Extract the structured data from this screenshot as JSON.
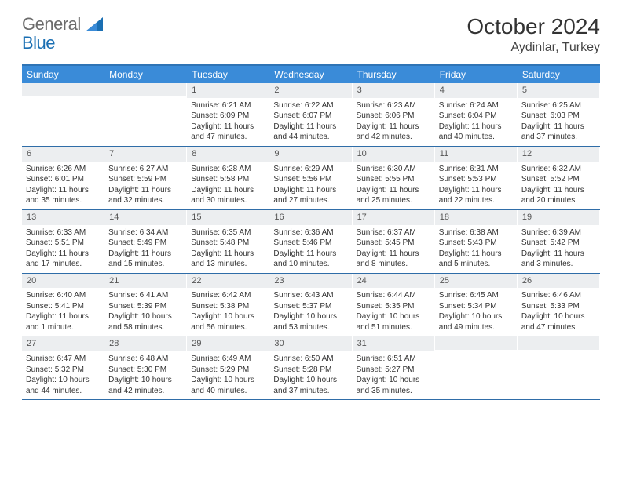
{
  "brand": {
    "part1": "General",
    "part2": "Blue"
  },
  "title": "October 2024",
  "location": "Aydinlar, Turkey",
  "colors": {
    "header_bg": "#3a8bd8",
    "header_text": "#ffffff",
    "border": "#2f6da8",
    "daynum_bg": "#eceef0",
    "text": "#333333"
  },
  "day_names": [
    "Sunday",
    "Monday",
    "Tuesday",
    "Wednesday",
    "Thursday",
    "Friday",
    "Saturday"
  ],
  "weeks": [
    [
      {
        "n": "",
        "sr": "",
        "ss": "",
        "dl": ""
      },
      {
        "n": "",
        "sr": "",
        "ss": "",
        "dl": ""
      },
      {
        "n": "1",
        "sr": "Sunrise: 6:21 AM",
        "ss": "Sunset: 6:09 PM",
        "dl": "Daylight: 11 hours and 47 minutes."
      },
      {
        "n": "2",
        "sr": "Sunrise: 6:22 AM",
        "ss": "Sunset: 6:07 PM",
        "dl": "Daylight: 11 hours and 44 minutes."
      },
      {
        "n": "3",
        "sr": "Sunrise: 6:23 AM",
        "ss": "Sunset: 6:06 PM",
        "dl": "Daylight: 11 hours and 42 minutes."
      },
      {
        "n": "4",
        "sr": "Sunrise: 6:24 AM",
        "ss": "Sunset: 6:04 PM",
        "dl": "Daylight: 11 hours and 40 minutes."
      },
      {
        "n": "5",
        "sr": "Sunrise: 6:25 AM",
        "ss": "Sunset: 6:03 PM",
        "dl": "Daylight: 11 hours and 37 minutes."
      }
    ],
    [
      {
        "n": "6",
        "sr": "Sunrise: 6:26 AM",
        "ss": "Sunset: 6:01 PM",
        "dl": "Daylight: 11 hours and 35 minutes."
      },
      {
        "n": "7",
        "sr": "Sunrise: 6:27 AM",
        "ss": "Sunset: 5:59 PM",
        "dl": "Daylight: 11 hours and 32 minutes."
      },
      {
        "n": "8",
        "sr": "Sunrise: 6:28 AM",
        "ss": "Sunset: 5:58 PM",
        "dl": "Daylight: 11 hours and 30 minutes."
      },
      {
        "n": "9",
        "sr": "Sunrise: 6:29 AM",
        "ss": "Sunset: 5:56 PM",
        "dl": "Daylight: 11 hours and 27 minutes."
      },
      {
        "n": "10",
        "sr": "Sunrise: 6:30 AM",
        "ss": "Sunset: 5:55 PM",
        "dl": "Daylight: 11 hours and 25 minutes."
      },
      {
        "n": "11",
        "sr": "Sunrise: 6:31 AM",
        "ss": "Sunset: 5:53 PM",
        "dl": "Daylight: 11 hours and 22 minutes."
      },
      {
        "n": "12",
        "sr": "Sunrise: 6:32 AM",
        "ss": "Sunset: 5:52 PM",
        "dl": "Daylight: 11 hours and 20 minutes."
      }
    ],
    [
      {
        "n": "13",
        "sr": "Sunrise: 6:33 AM",
        "ss": "Sunset: 5:51 PM",
        "dl": "Daylight: 11 hours and 17 minutes."
      },
      {
        "n": "14",
        "sr": "Sunrise: 6:34 AM",
        "ss": "Sunset: 5:49 PM",
        "dl": "Daylight: 11 hours and 15 minutes."
      },
      {
        "n": "15",
        "sr": "Sunrise: 6:35 AM",
        "ss": "Sunset: 5:48 PM",
        "dl": "Daylight: 11 hours and 13 minutes."
      },
      {
        "n": "16",
        "sr": "Sunrise: 6:36 AM",
        "ss": "Sunset: 5:46 PM",
        "dl": "Daylight: 11 hours and 10 minutes."
      },
      {
        "n": "17",
        "sr": "Sunrise: 6:37 AM",
        "ss": "Sunset: 5:45 PM",
        "dl": "Daylight: 11 hours and 8 minutes."
      },
      {
        "n": "18",
        "sr": "Sunrise: 6:38 AM",
        "ss": "Sunset: 5:43 PM",
        "dl": "Daylight: 11 hours and 5 minutes."
      },
      {
        "n": "19",
        "sr": "Sunrise: 6:39 AM",
        "ss": "Sunset: 5:42 PM",
        "dl": "Daylight: 11 hours and 3 minutes."
      }
    ],
    [
      {
        "n": "20",
        "sr": "Sunrise: 6:40 AM",
        "ss": "Sunset: 5:41 PM",
        "dl": "Daylight: 11 hours and 1 minute."
      },
      {
        "n": "21",
        "sr": "Sunrise: 6:41 AM",
        "ss": "Sunset: 5:39 PM",
        "dl": "Daylight: 10 hours and 58 minutes."
      },
      {
        "n": "22",
        "sr": "Sunrise: 6:42 AM",
        "ss": "Sunset: 5:38 PM",
        "dl": "Daylight: 10 hours and 56 minutes."
      },
      {
        "n": "23",
        "sr": "Sunrise: 6:43 AM",
        "ss": "Sunset: 5:37 PM",
        "dl": "Daylight: 10 hours and 53 minutes."
      },
      {
        "n": "24",
        "sr": "Sunrise: 6:44 AM",
        "ss": "Sunset: 5:35 PM",
        "dl": "Daylight: 10 hours and 51 minutes."
      },
      {
        "n": "25",
        "sr": "Sunrise: 6:45 AM",
        "ss": "Sunset: 5:34 PM",
        "dl": "Daylight: 10 hours and 49 minutes."
      },
      {
        "n": "26",
        "sr": "Sunrise: 6:46 AM",
        "ss": "Sunset: 5:33 PM",
        "dl": "Daylight: 10 hours and 47 minutes."
      }
    ],
    [
      {
        "n": "27",
        "sr": "Sunrise: 6:47 AM",
        "ss": "Sunset: 5:32 PM",
        "dl": "Daylight: 10 hours and 44 minutes."
      },
      {
        "n": "28",
        "sr": "Sunrise: 6:48 AM",
        "ss": "Sunset: 5:30 PM",
        "dl": "Daylight: 10 hours and 42 minutes."
      },
      {
        "n": "29",
        "sr": "Sunrise: 6:49 AM",
        "ss": "Sunset: 5:29 PM",
        "dl": "Daylight: 10 hours and 40 minutes."
      },
      {
        "n": "30",
        "sr": "Sunrise: 6:50 AM",
        "ss": "Sunset: 5:28 PM",
        "dl": "Daylight: 10 hours and 37 minutes."
      },
      {
        "n": "31",
        "sr": "Sunrise: 6:51 AM",
        "ss": "Sunset: 5:27 PM",
        "dl": "Daylight: 10 hours and 35 minutes."
      },
      {
        "n": "",
        "sr": "",
        "ss": "",
        "dl": ""
      },
      {
        "n": "",
        "sr": "",
        "ss": "",
        "dl": ""
      }
    ]
  ]
}
